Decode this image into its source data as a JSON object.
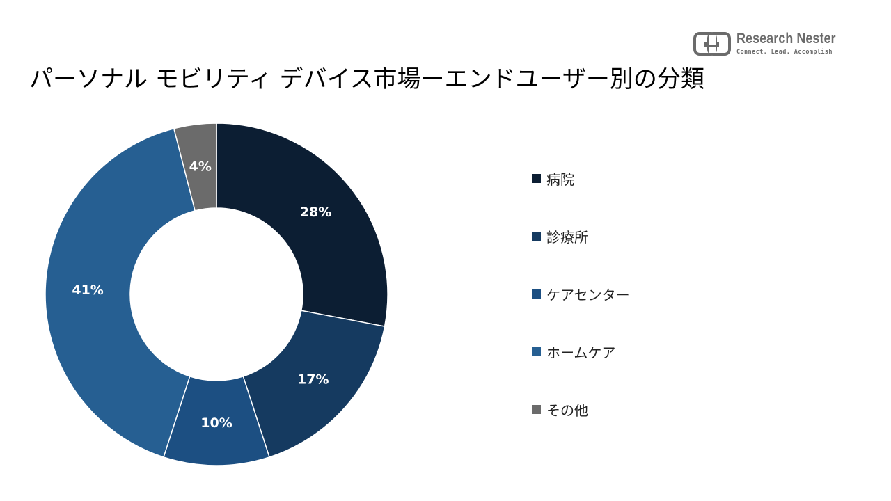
{
  "header": {
    "title": "パーソナル モビリティ デバイス市場ーエンドユーザー別の分類"
  },
  "brand": {
    "name": "Research Nester",
    "tagline": "Connect. Lead. Accomplish",
    "color": "#6b6b6b"
  },
  "chart_data": {
    "type": "pie",
    "variant": "donut",
    "title": "パーソナル モビリティ デバイス市場ーエンドユーザー別の分類",
    "categories": [
      "病院",
      "診療所",
      "ケアセンター",
      "ホームケア",
      "その他"
    ],
    "values": [
      28,
      17,
      10,
      41,
      4
    ],
    "labels": [
      "28%",
      "17%",
      "10%",
      "41%",
      "4%"
    ],
    "unit": "%",
    "colors": [
      "#0c1e33",
      "#153a60",
      "#1c4f82",
      "#265f92",
      "#6b6b6b"
    ],
    "label_colors": [
      "#ffffff",
      "#ffffff",
      "#ffffff",
      "#ffffff",
      "#ffffff"
    ],
    "legend_position": "right",
    "start_angle_deg": 0,
    "direction": "clockwise"
  }
}
